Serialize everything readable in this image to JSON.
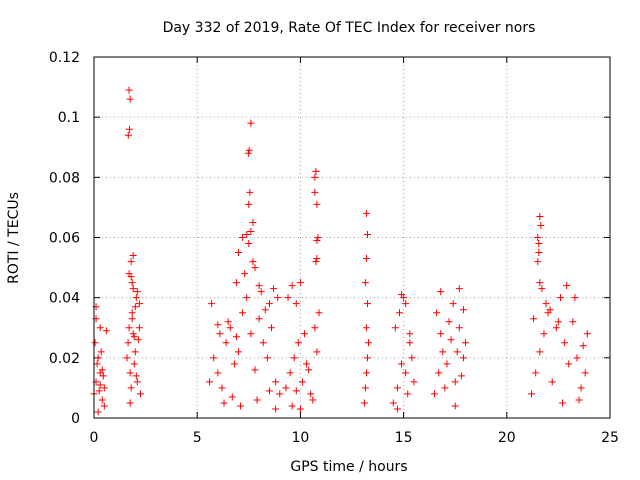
{
  "chart_data": {
    "type": "scatter",
    "title": "Day 332 of 2019, Rate Of TEC Index for receiver nors",
    "xlabel": "GPS time / hours",
    "ylabel": "ROTI / TECUs",
    "xlim": [
      0,
      25
    ],
    "ylim": [
      0,
      0.12
    ],
    "xticks": [
      0,
      5,
      10,
      15,
      20,
      25
    ],
    "xtick_labels": [
      "0",
      "5",
      "10",
      "15",
      "20",
      "25"
    ],
    "yticks": [
      0,
      0.02,
      0.04,
      0.06,
      0.08,
      0.1,
      0.12
    ],
    "ytick_labels": [
      "0",
      "0.02",
      "0.04",
      "0.06",
      "0.08",
      "0.1",
      "0.12"
    ],
    "grid": true,
    "marker": "+",
    "color": "#ff0000",
    "series": [
      {
        "name": "ROTI",
        "x": [
          0.0,
          0.1,
          0.2,
          0.3,
          0.4,
          0.5,
          0.05,
          0.15,
          0.25,
          0.35,
          0.45,
          0.1,
          0.3,
          0.5,
          0.2,
          0.4,
          0.6,
          0.1,
          0.3,
          1.6,
          1.65,
          1.7,
          1.75,
          1.8,
          1.85,
          1.9,
          1.95,
          2.0,
          2.05,
          2.1,
          2.15,
          2.2,
          2.25,
          1.7,
          1.8,
          1.9,
          2.0,
          2.1,
          2.2,
          1.75,
          1.85,
          1.95,
          2.05,
          1.7,
          1.75,
          1.72,
          1.66,
          1.8,
          1.85,
          1.9,
          5.6,
          5.8,
          6.0,
          6.2,
          6.4,
          6.6,
          6.8,
          7.0,
          7.2,
          7.4,
          7.6,
          7.8,
          8.0,
          8.2,
          8.4,
          8.6,
          8.8,
          9.0,
          5.7,
          6.1,
          6.5,
          6.9,
          7.3,
          7.7,
          8.1,
          8.5,
          8.9,
          7.0,
          7.2,
          7.4,
          7.5,
          7.6,
          7.5,
          7.55,
          7.52,
          7.48,
          7.6,
          7.7,
          7.8,
          8.0,
          8.3,
          8.7,
          6.3,
          6.7,
          7.1,
          7.9,
          8.5,
          8.8,
          6.0,
          6.9,
          9.3,
          9.5,
          9.7,
          9.9,
          10.1,
          10.3,
          10.5,
          10.7,
          10.8,
          10.9,
          9.4,
          9.6,
          9.8,
          10.0,
          10.2,
          10.4,
          10.6,
          10.75,
          10.8,
          10.85,
          10.7,
          10.75,
          10.8,
          10.7,
          10.8,
          9.6,
          9.8,
          10.0,
          13.1,
          13.15,
          13.2,
          13.25,
          13.3,
          13.2,
          13.25,
          13.15,
          13.2,
          13.25,
          13.2,
          14.5,
          14.7,
          14.9,
          15.1,
          15.3,
          15.5,
          14.6,
          14.8,
          15.0,
          15.2,
          15.4,
          14.9,
          15.1,
          15.3,
          14.7,
          16.5,
          16.7,
          16.9,
          17.1,
          17.3,
          17.5,
          17.7,
          17.9,
          18.0,
          16.6,
          16.8,
          17.0,
          17.2,
          17.4,
          17.6,
          17.8,
          16.8,
          17.7,
          17.9,
          17.5,
          21.2,
          21.4,
          21.6,
          21.8,
          22.0,
          22.2,
          22.4,
          22.6,
          22.8,
          23.0,
          23.2,
          23.4,
          23.6,
          23.8,
          23.9,
          21.5,
          21.55,
          21.6,
          21.65,
          21.5,
          21.6,
          21.55,
          21.7,
          21.9,
          22.1,
          22.5,
          22.9,
          23.3,
          23.7,
          21.3,
          22.7,
          23.5
        ],
        "y": [
          0.008,
          0.012,
          0.02,
          0.015,
          0.006,
          0.01,
          0.025,
          0.018,
          0.009,
          0.022,
          0.014,
          0.037,
          0.03,
          0.004,
          0.002,
          0.016,
          0.029,
          0.033,
          0.011,
          0.02,
          0.025,
          0.03,
          0.015,
          0.01,
          0.035,
          0.028,
          0.018,
          0.022,
          0.04,
          0.012,
          0.026,
          0.03,
          0.008,
          0.048,
          0.047,
          0.054,
          0.037,
          0.042,
          0.038,
          0.005,
          0.033,
          0.027,
          0.014,
          0.109,
          0.106,
          0.096,
          0.094,
          0.052,
          0.045,
          0.043,
          0.012,
          0.02,
          0.015,
          0.01,
          0.025,
          0.03,
          0.018,
          0.022,
          0.035,
          0.04,
          0.028,
          0.016,
          0.033,
          0.025,
          0.02,
          0.03,
          0.012,
          0.008,
          0.038,
          0.028,
          0.032,
          0.045,
          0.048,
          0.052,
          0.042,
          0.038,
          0.04,
          0.055,
          0.06,
          0.061,
          0.058,
          0.062,
          0.071,
          0.075,
          0.089,
          0.088,
          0.098,
          0.065,
          0.05,
          0.044,
          0.036,
          0.043,
          0.005,
          0.007,
          0.004,
          0.006,
          0.009,
          0.003,
          0.031,
          0.027,
          0.01,
          0.015,
          0.02,
          0.025,
          0.012,
          0.018,
          0.008,
          0.03,
          0.022,
          0.035,
          0.04,
          0.044,
          0.038,
          0.045,
          0.028,
          0.016,
          0.006,
          0.052,
          0.053,
          0.06,
          0.08,
          0.082,
          0.071,
          0.075,
          0.059,
          0.004,
          0.009,
          0.003,
          0.005,
          0.01,
          0.015,
          0.02,
          0.025,
          0.03,
          0.038,
          0.045,
          0.053,
          0.061,
          0.068,
          0.005,
          0.01,
          0.018,
          0.015,
          0.025,
          0.012,
          0.03,
          0.035,
          0.04,
          0.008,
          0.02,
          0.041,
          0.038,
          0.028,
          0.003,
          0.008,
          0.015,
          0.022,
          0.018,
          0.026,
          0.012,
          0.03,
          0.02,
          0.025,
          0.035,
          0.028,
          0.01,
          0.032,
          0.038,
          0.022,
          0.014,
          0.042,
          0.043,
          0.036,
          0.004,
          0.008,
          0.015,
          0.022,
          0.028,
          0.035,
          0.012,
          0.03,
          0.04,
          0.025,
          0.018,
          0.032,
          0.02,
          0.01,
          0.015,
          0.028,
          0.06,
          0.058,
          0.067,
          0.064,
          0.052,
          0.045,
          0.055,
          0.043,
          0.038,
          0.036,
          0.032,
          0.044,
          0.04,
          0.024,
          0.033,
          0.005,
          0.006
        ]
      }
    ]
  }
}
